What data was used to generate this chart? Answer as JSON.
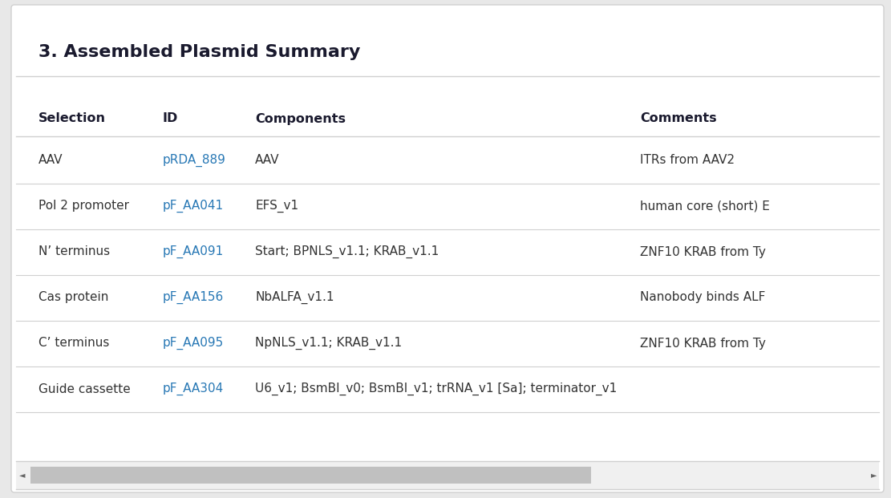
{
  "title": "3. Assembled Plasmid Summary",
  "outer_bg": "#e8e8e8",
  "card_bg": "#ffffff",
  "card_edge": "#d0d0d0",
  "header_color": "#1a1a2e",
  "link_color": "#2878b5",
  "text_color": "#333333",
  "divider_color": "#d0d0d0",
  "headers": [
    "Selection",
    "ID",
    "Components",
    "Comments"
  ],
  "rows": [
    {
      "selection": "AAV",
      "id": "pRDA_889",
      "components": "AAV",
      "comments": "ITRs from AAV2"
    },
    {
      "selection": "Pol 2 promoter",
      "id": "pF_AA041",
      "components": "EFS_v1",
      "comments": "human core (short) E"
    },
    {
      "selection": "N’ terminus",
      "id": "pF_AA091",
      "components": "Start; BPNLS_v1.1; KRAB_v1.1",
      "comments": "ZNF10 KRAB from Ty"
    },
    {
      "selection": "Cas protein",
      "id": "pF_AA156",
      "components": "NbALFA_v1.1",
      "comments": "Nanobody binds ALF"
    },
    {
      "selection": "C’ terminus",
      "id": "pF_AA095",
      "components": "NpNLS_v1.1; KRAB_v1.1",
      "comments": "ZNF10 KRAB from Ty"
    },
    {
      "selection": "Guide cassette",
      "id": "pF_AA304",
      "components": "U6_v1; BsmBI_v0; BsmBI_v1; trRNA_v1 [Sa]; terminator_v1",
      "comments": ""
    }
  ],
  "title_fontsize": 16,
  "header_fontsize": 11.5,
  "cell_fontsize": 11,
  "scrollbar_thumb_color": "#c0c0c0",
  "scrollbar_track_color": "#f0f0f0",
  "scrollbar_border_color": "#d0d0d0"
}
